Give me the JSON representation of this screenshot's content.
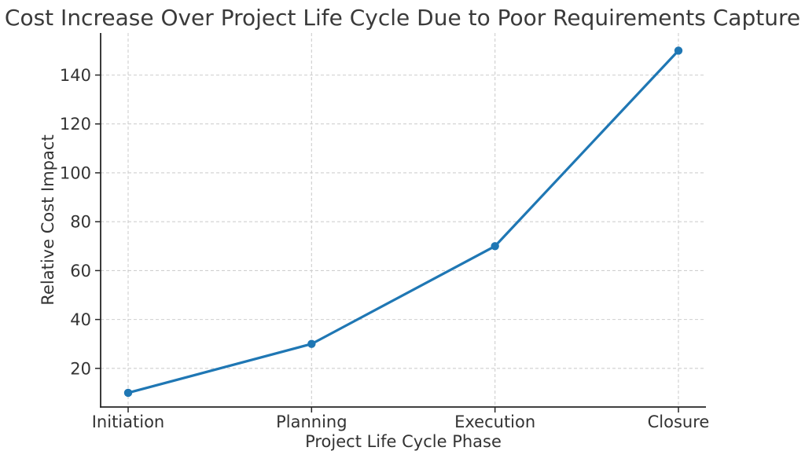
{
  "chart_data": {
    "type": "line",
    "title": "Cost Increase Over Project Life Cycle Due to Poor Requirements Capture",
    "xlabel": "Project Life Cycle Phase",
    "ylabel": "Relative Cost Impact",
    "categories": [
      "Initiation",
      "Planning",
      "Execution",
      "Closure"
    ],
    "values": [
      10,
      30,
      70,
      150
    ],
    "yticks": [
      20,
      40,
      60,
      80,
      100,
      120,
      140
    ],
    "ylim": [
      4.2,
      157.2
    ],
    "grid": true,
    "grid_style": "dashed",
    "legend": "none",
    "line_color": "#1f77b4",
    "marker": "circle",
    "grid_color": "#cfcfcf",
    "spine_color": "#262626",
    "text_color": "#333333",
    "background_color": "#ffffff"
  }
}
